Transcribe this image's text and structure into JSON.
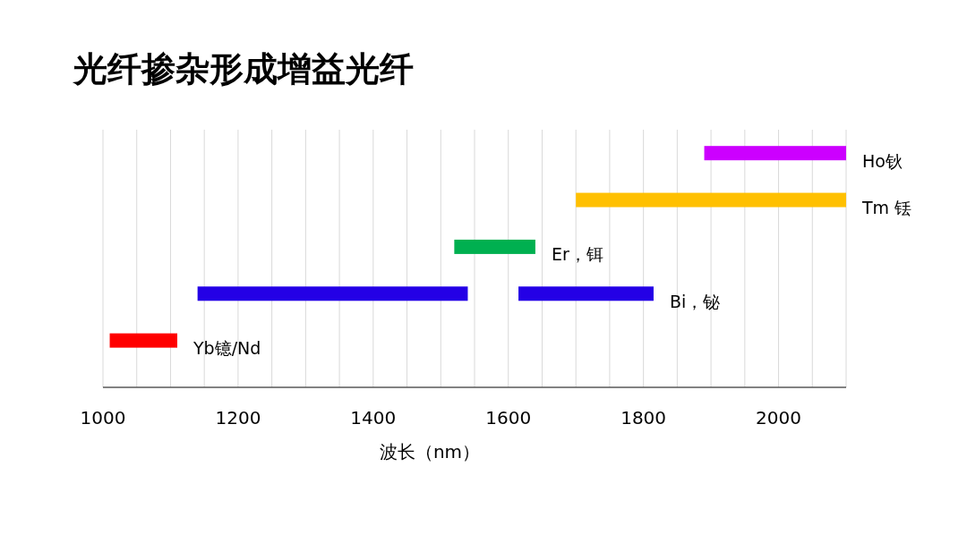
{
  "chart_data": {
    "type": "bar",
    "orientation": "horizontal",
    "title": "光纤掺杂形成增益光纤",
    "xlabel": "波长（nm）",
    "categories": [
      "Ho钬",
      "Tm 铥",
      "Er，铒",
      "Bi，铋",
      "Yb镱/Nd"
    ],
    "series": [
      {
        "base": [
          1890,
          1700,
          1520,
          1140,
          1010
        ],
        "values": [
          210,
          400,
          120,
          400,
          100
        ],
        "colors": [
          "#cc00ff",
          "#ffc000",
          "#00b050",
          "#2400e6",
          "#ff0000"
        ]
      },
      {
        "base": [
          null,
          null,
          null,
          1615,
          null
        ],
        "values": [
          null,
          null,
          null,
          200,
          null
        ],
        "colors": [
          null,
          null,
          null,
          "#2400e6",
          null
        ]
      }
    ],
    "xlim": [
      1000,
      2100
    ],
    "xticks": [
      1000,
      {
        "value": 1050,
        "label": null
      },
      1200,
      {
        "value": 1100,
        "label": null
      },
      {
        "value": 1150,
        "label": null
      },
      {
        "value": 1250,
        "label": null
      },
      {
        "value": 1300,
        "label": null
      },
      {
        "value": 1350,
        "label": null
      },
      1400,
      {
        "value": 1450,
        "label": null
      },
      {
        "value": 1500,
        "label": null
      },
      {
        "value": 1550,
        "label": null
      },
      1600,
      {
        "value": 1650,
        "label": null
      },
      {
        "value": 1700,
        "label": null
      },
      {
        "value": 1750,
        "label": null
      },
      1800,
      {
        "value": 1850,
        "label": null
      },
      {
        "value": 1900,
        "label": null
      },
      {
        "value": 1950,
        "label": null
      },
      2000,
      {
        "value": 2050,
        "label": null
      },
      {
        "value": 2100,
        "label": null
      }
    ],
    "grid": "x"
  }
}
